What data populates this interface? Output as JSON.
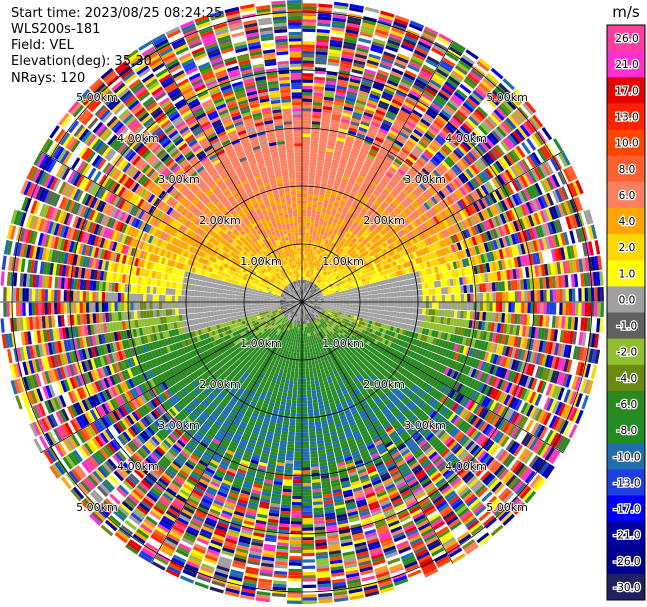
{
  "header": {
    "start_time": "Start time: 2023/08/25 08:24:25",
    "instrument": "WLS200s-181",
    "field": "Field: VEL",
    "elevation": "Elevation(deg): 35.30",
    "nrays": "NRays: 120"
  },
  "colorbar": {
    "unit": "m/s",
    "ticks": [
      "26.0",
      "21.0",
      "17.0",
      "13.0",
      "10.0",
      "8.0",
      "6.0",
      "4.0",
      "2.0",
      "1.0",
      "0.0",
      "-1.0",
      "-2.0",
      "-4.0",
      "-6.0",
      "-8.0",
      "-10.0",
      "-13.0",
      "-17.0",
      "-21.0",
      "-26.0",
      "-30.0"
    ],
    "colors": [
      "#ff3ca0",
      "#ff2fd0",
      "#e60000",
      "#ff2200",
      "#ff4400",
      "#ff6030",
      "#ff8060",
      "#ffa500",
      "#ffd700",
      "#ffff00",
      "#a0a0a0",
      "#606060",
      "#90c030",
      "#6a8a10",
      "#2a8a20",
      "#228b22",
      "#1e6eb0",
      "#1e40e0",
      "#0000ff",
      "#0000a0",
      "#000090",
      "#202060"
    ]
  },
  "range_labels": [
    "1.00km",
    "2.00km",
    "3.00km",
    "4.00km",
    "5.00km"
  ]
}
